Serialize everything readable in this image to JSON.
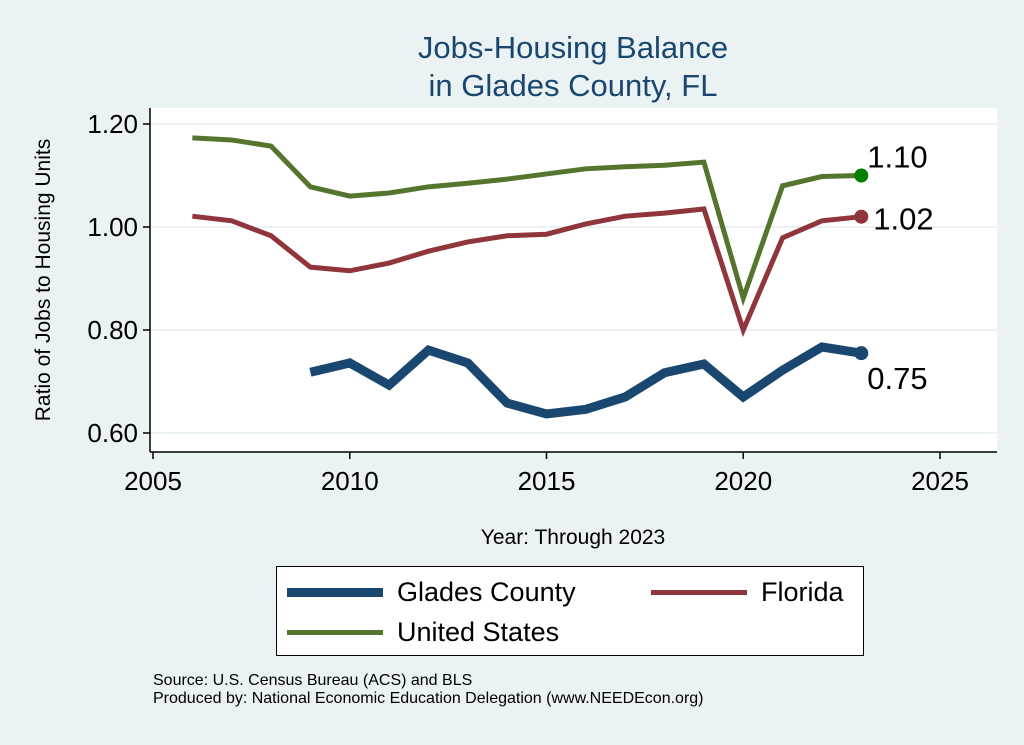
{
  "chart_data": {
    "type": "line",
    "title": [
      "Jobs-Housing Balance",
      "in Glades County, FL"
    ],
    "xlabel": "Year: Through 2023",
    "ylabel": "Ratio of Jobs to Housing Units",
    "xlim": [
      2004.5,
      2026.5
    ],
    "ylim": [
      0.57,
      1.23
    ],
    "xticks": [
      2005,
      2010,
      2015,
      2020,
      2025
    ],
    "yticks": [
      0.6,
      0.8,
      1.0,
      1.2
    ],
    "ytick_labels": [
      "0.60",
      "0.80",
      "1.00",
      "1.20"
    ],
    "grid": true,
    "legend_position": "bottom",
    "series": [
      {
        "name": "Glades County",
        "color": "#1a476f",
        "width": 9,
        "x": [
          2009,
          2010,
          2011,
          2012,
          2013,
          2014,
          2015,
          2016,
          2017,
          2018,
          2019,
          2020,
          2021,
          2022,
          2023
        ],
        "values": [
          0.718,
          0.736,
          0.693,
          0.761,
          0.736,
          0.658,
          0.637,
          0.646,
          0.67,
          0.717,
          0.734,
          0.67,
          0.722,
          0.767,
          0.755
        ],
        "end_label": "0.75",
        "end_color": "#1a476f"
      },
      {
        "name": "Florida",
        "color": "#90353b",
        "width": 5,
        "x": [
          2006,
          2007,
          2008,
          2009,
          2010,
          2011,
          2012,
          2013,
          2014,
          2015,
          2016,
          2017,
          2018,
          2019,
          2020,
          2021,
          2022,
          2023
        ],
        "values": [
          1.021,
          1.012,
          0.983,
          0.922,
          0.915,
          0.93,
          0.953,
          0.971,
          0.983,
          0.986,
          1.006,
          1.021,
          1.027,
          1.035,
          0.8,
          0.979,
          1.012,
          1.02
        ],
        "end_label": "1.02",
        "end_color": "#90353b"
      },
      {
        "name": "United States",
        "color": "#55752f",
        "width": 5,
        "x": [
          2006,
          2007,
          2008,
          2009,
          2010,
          2011,
          2012,
          2013,
          2014,
          2015,
          2016,
          2017,
          2018,
          2019,
          2020,
          2021,
          2022,
          2023
        ],
        "values": [
          1.173,
          1.169,
          1.157,
          1.078,
          1.06,
          1.066,
          1.078,
          1.085,
          1.093,
          1.103,
          1.113,
          1.117,
          1.12,
          1.126,
          0.862,
          1.08,
          1.098,
          1.1
        ],
        "end_label": "1.10",
        "end_color": "#008000"
      }
    ]
  },
  "source": {
    "line1": "Source: U.S. Census Bureau (ACS) and BLS",
    "line2": "Produced by: National Economic Education Delegation (www.NEEDEcon.org)"
  }
}
